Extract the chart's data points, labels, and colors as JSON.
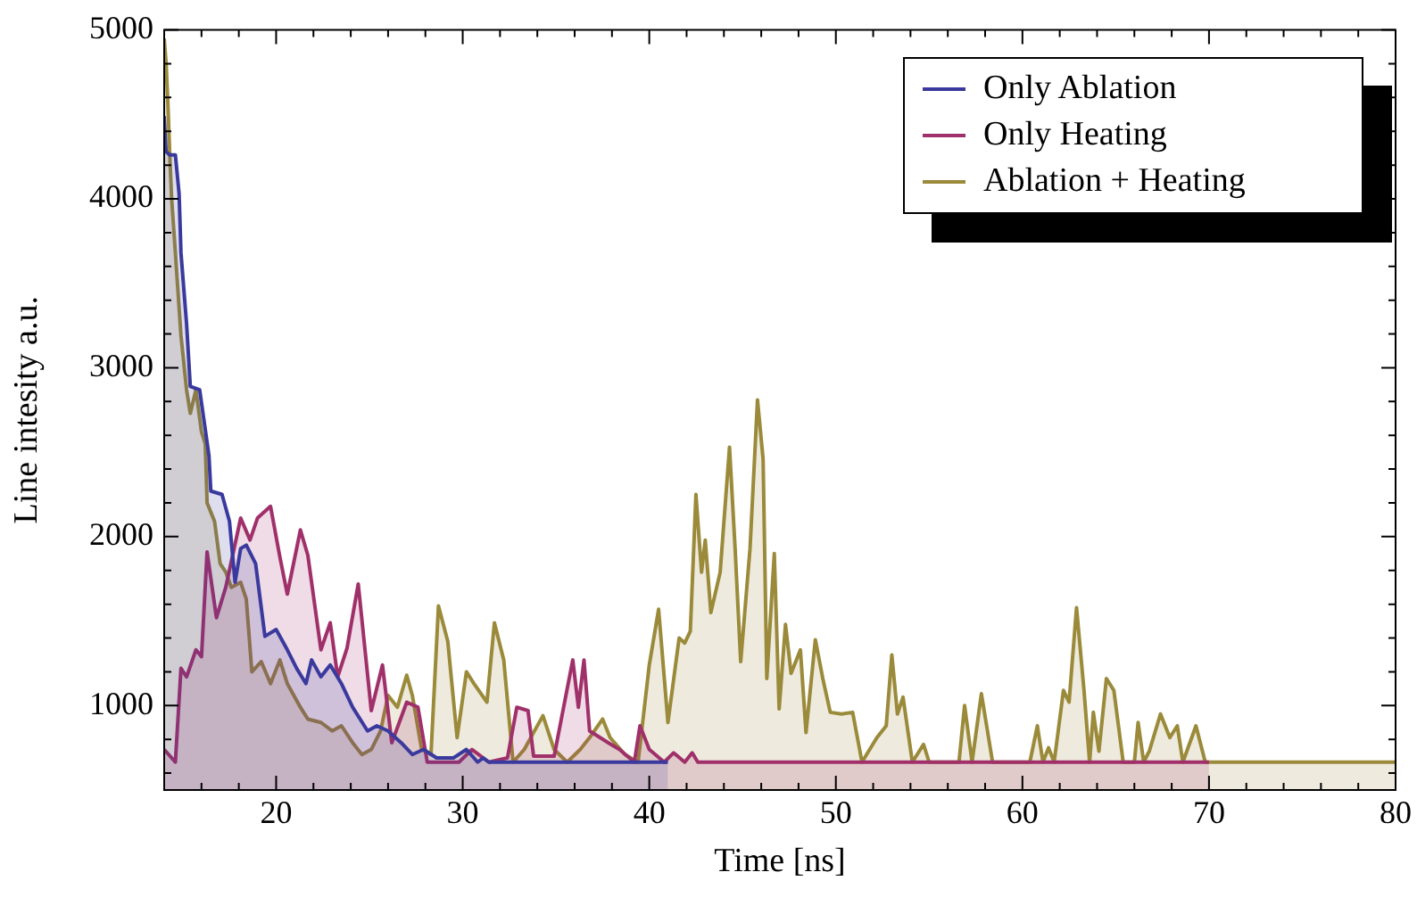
{
  "chart_data": {
    "type": "area",
    "xlabel": "Time [ns]",
    "ylabel": "Line intesity a.u.",
    "legend": "top right",
    "grid": false,
    "xlim": [
      14,
      80
    ],
    "ylim": [
      500,
      5000
    ],
    "xticks": [
      {
        "value": 16,
        "label": null
      },
      {
        "value": 18,
        "label": null
      },
      20,
      {
        "value": 22,
        "label": null
      },
      {
        "value": 24,
        "label": null
      },
      {
        "value": 26,
        "label": null
      },
      {
        "value": 28,
        "label": null
      },
      30,
      {
        "value": 32,
        "label": null
      },
      {
        "value": 34,
        "label": null
      },
      {
        "value": 36,
        "label": null
      },
      {
        "value": 38,
        "label": null
      },
      40,
      {
        "value": 42,
        "label": null
      },
      {
        "value": 44,
        "label": null
      },
      {
        "value": 46,
        "label": null
      },
      {
        "value": 48,
        "label": null
      },
      50,
      {
        "value": 52,
        "label": null
      },
      {
        "value": 54,
        "label": null
      },
      {
        "value": 56,
        "label": null
      },
      {
        "value": 58,
        "label": null
      },
      60,
      {
        "value": 62,
        "label": null
      },
      {
        "value": 64,
        "label": null
      },
      {
        "value": 66,
        "label": null
      },
      {
        "value": 68,
        "label": null
      },
      70,
      {
        "value": 72,
        "label": null
      },
      {
        "value": 74,
        "label": null
      },
      {
        "value": 76,
        "label": null
      },
      {
        "value": 78,
        "label": null
      },
      80
    ],
    "yticks": [
      {
        "value": 600,
        "label": null
      },
      {
        "value": 800,
        "label": null
      },
      1000,
      {
        "value": 1200,
        "label": null
      },
      {
        "value": 1400,
        "label": null
      },
      {
        "value": 1600,
        "label": null
      },
      {
        "value": 1800,
        "label": null
      },
      2000,
      {
        "value": 2200,
        "label": null
      },
      {
        "value": 2400,
        "label": null
      },
      {
        "value": 2600,
        "label": null
      },
      {
        "value": 2800,
        "label": null
      },
      3000,
      {
        "value": 3200,
        "label": null
      },
      {
        "value": 3400,
        "label": null
      },
      {
        "value": 3600,
        "label": null
      },
      {
        "value": 3800,
        "label": null
      },
      4000,
      {
        "value": 4200,
        "label": null
      },
      {
        "value": 4400,
        "label": null
      },
      {
        "value": 4600,
        "label": null
      },
      {
        "value": 4800,
        "label": null
      },
      5000
    ],
    "series": [
      {
        "name": "Only Ablation",
        "color": "#3a3a9e",
        "x": [
          14,
          14.1,
          14.3,
          14.6,
          14.8,
          14.9,
          15.2,
          15.4,
          15.9,
          16.4,
          16.5,
          17.1,
          17.5,
          17.8,
          18.1,
          18.4,
          18.9,
          19.4,
          20,
          20.6,
          21.1,
          21.6,
          21.9,
          22.4,
          22.9,
          23.5,
          24.1,
          24.9,
          25.4,
          26,
          26.7,
          27.3,
          27.9,
          28.6,
          29.5,
          30.2,
          30.8,
          31.1,
          31.4,
          41
        ],
        "values": [
          4490,
          4280,
          4260,
          4260,
          4030,
          3680,
          3260,
          2890,
          2870,
          2480,
          2270,
          2250,
          2090,
          1730,
          1930,
          1950,
          1840,
          1410,
          1450,
          1330,
          1220,
          1130,
          1270,
          1170,
          1240,
          1130,
          990,
          850,
          880,
          850,
          780,
          710,
          740,
          690,
          690,
          740,
          665,
          690,
          665,
          665
        ]
      },
      {
        "name": "Only Heating",
        "color": "#a0306a",
        "x": [
          14,
          14.6,
          14.9,
          15.2,
          15.7,
          16,
          16.3,
          16.8,
          17.3,
          18.1,
          18.6,
          19,
          19.7,
          20.2,
          20.6,
          21.3,
          21.7,
          22.4,
          22.9,
          23.3,
          23.8,
          24.4,
          25.1,
          25.7,
          26.2,
          27,
          27.6,
          28.1,
          29.8,
          30.5,
          31.4,
          32.4,
          32.9,
          33.5,
          33.8,
          34.9,
          35.9,
          36.2,
          36.5,
          36.8,
          37.8,
          38.4,
          39.2,
          39.5,
          40,
          40.8,
          41.3,
          41.9,
          42.3,
          42.6,
          70
        ],
        "values": [
          740,
          665,
          1220,
          1170,
          1330,
          1290,
          1910,
          1520,
          1700,
          2110,
          1980,
          2110,
          2180,
          1880,
          1660,
          2040,
          1890,
          1330,
          1490,
          1170,
          1340,
          1720,
          970,
          1240,
          780,
          1020,
          990,
          665,
          665,
          740,
          665,
          690,
          990,
          970,
          700,
          700,
          1270,
          990,
          1270,
          850,
          780,
          740,
          665,
          880,
          740,
          665,
          720,
          665,
          720,
          665,
          665
        ]
      },
      {
        "name": "Ablation + Heating",
        "color": "#9a8a3a",
        "x": [
          14,
          14.1,
          14.2,
          14.3,
          14.4,
          14.6,
          14.9,
          15.2,
          15.4,
          15.7,
          16,
          16.2,
          16.3,
          16.7,
          17,
          17.3,
          17.6,
          18.1,
          18.4,
          18.7,
          19.2,
          19.7,
          20.2,
          20.6,
          21.3,
          21.7,
          22.4,
          23,
          23.5,
          24.1,
          24.6,
          25.1,
          25.6,
          26,
          26.5,
          27,
          27.3,
          27.8,
          28.3,
          28.7,
          29.2,
          29.7,
          30.2,
          30.6,
          31.3,
          31.7,
          32.2,
          32.7,
          33.3,
          34.3,
          34.9,
          35.6,
          36.3,
          36.8,
          37.5,
          37.9,
          38.7,
          39.4,
          40,
          40.5,
          41,
          41.6,
          41.9,
          42.2,
          42.5,
          42.8,
          43,
          43.3,
          43.8,
          44.3,
          44.6,
          44.9,
          45.4,
          45.8,
          46.1,
          46.3,
          46.7,
          46.96,
          47.3,
          47.6,
          48.1,
          48.4,
          48.9,
          49.3,
          49.7,
          50.3,
          50.9,
          51.4,
          52.2,
          52.7,
          53,
          53.3,
          53.6,
          54.1,
          54.7,
          55,
          56.6,
          56.9,
          57.3,
          57.8,
          58.4,
          60.4,
          60.8,
          61.1,
          61.4,
          61.7,
          62.2,
          62.5,
          62.9,
          63.3,
          63.6,
          63.8,
          64.1,
          64.5,
          64.9,
          65.4,
          66,
          66.2,
          66.5,
          66.8,
          67.4,
          67.9,
          68.3,
          68.6,
          69.3,
          69.8,
          80
        ],
        "values": [
          4950,
          4810,
          4560,
          4260,
          4000,
          3680,
          3190,
          2870,
          2730,
          2870,
          2620,
          2550,
          2200,
          2090,
          1840,
          1790,
          1700,
          1730,
          1630,
          1200,
          1260,
          1130,
          1270,
          1130,
          990,
          920,
          900,
          850,
          880,
          780,
          710,
          740,
          850,
          1060,
          990,
          1180,
          1060,
          740,
          710,
          1590,
          1380,
          810,
          1200,
          1130,
          1020,
          1490,
          1270,
          665,
          740,
          940,
          740,
          665,
          740,
          810,
          920,
          810,
          710,
          665,
          1240,
          1570,
          900,
          1400,
          1370,
          1440,
          2250,
          1790,
          1980,
          1550,
          1790,
          2530,
          1930,
          1260,
          1930,
          2810,
          2460,
          1160,
          1900,
          980,
          1480,
          1190,
          1330,
          840,
          1390,
          1160,
          960,
          950,
          960,
          665,
          810,
          880,
          1300,
          950,
          1050,
          665,
          770,
          665,
          665,
          1000,
          665,
          1070,
          665,
          665,
          880,
          665,
          750,
          665,
          1090,
          1020,
          1580,
          1090,
          665,
          960,
          730,
          1160,
          1090,
          665,
          665,
          900,
          665,
          730,
          950,
          810,
          880,
          665,
          880,
          665,
          665
        ]
      }
    ]
  }
}
